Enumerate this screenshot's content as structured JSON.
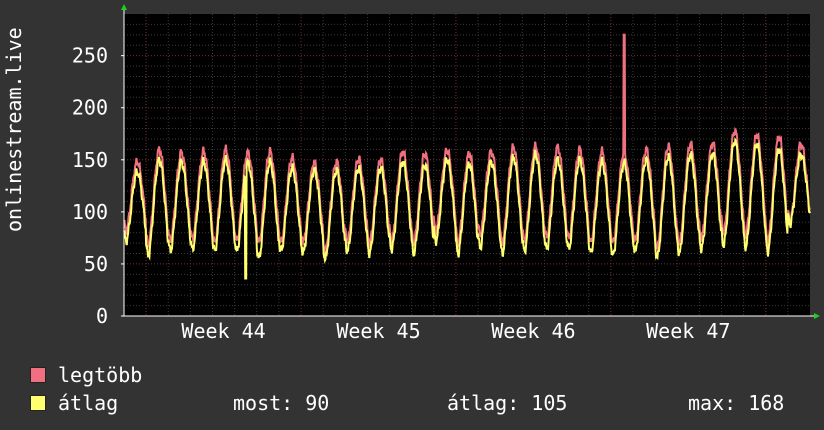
{
  "chart_data": {
    "type": "line",
    "ylabel": "onlinestream.live",
    "xlabel": "",
    "ylim": [
      0,
      290
    ],
    "yticks": [
      0,
      50,
      100,
      150,
      200,
      250
    ],
    "xtick_labels": [
      "Week 44",
      "Week 45",
      "Week 46",
      "Week 47"
    ],
    "grid": true,
    "num_days": 31,
    "series": [
      {
        "name": "legtöbb",
        "color": "#f07080",
        "daily_peaks": [
          148,
          160,
          157,
          158,
          160,
          157,
          158,
          152,
          147,
          148,
          151,
          150,
          158,
          156,
          159,
          156,
          158,
          162,
          163,
          162,
          160,
          158,
          157,
          160,
          163,
          165,
          166,
          178,
          174,
          172,
          165
        ],
        "daily_troughs": [
          82,
          68,
          72,
          74,
          70,
          72,
          70,
          70,
          70,
          62,
          72,
          70,
          72,
          70,
          82,
          70,
          78,
          70,
          72,
          75,
          74,
          70,
          70,
          72,
          65,
          70,
          75,
          80,
          78,
          72,
          90
        ],
        "spike": {
          "value": 270,
          "day": 22.6
        }
      },
      {
        "name": "átlag",
        "color": "#ffff70",
        "daily_peaks": [
          138,
          150,
          148,
          148,
          150,
          147,
          148,
          142,
          140,
          140,
          142,
          142,
          148,
          145,
          150,
          146,
          148,
          152,
          155,
          150,
          150,
          148,
          147,
          150,
          153,
          155,
          156,
          168,
          165,
          160,
          155
        ],
        "daily_troughs": [
          72,
          58,
          62,
          64,
          62,
          62,
          55,
          62,
          60,
          55,
          62,
          60,
          64,
          60,
          72,
          60,
          66,
          60,
          62,
          64,
          64,
          60,
          58,
          62,
          56,
          60,
          64,
          68,
          66,
          62,
          88
        ],
        "spike": {
          "value": 36,
          "day": 5.5
        }
      }
    ]
  },
  "legend": [
    {
      "label": "legtöbb",
      "color": "#f07080"
    },
    {
      "label": "átlag",
      "color": "#ffff70"
    }
  ],
  "stats": {
    "most": "most: 90",
    "atlag": "átlag: 105",
    "max": "max: 168"
  }
}
